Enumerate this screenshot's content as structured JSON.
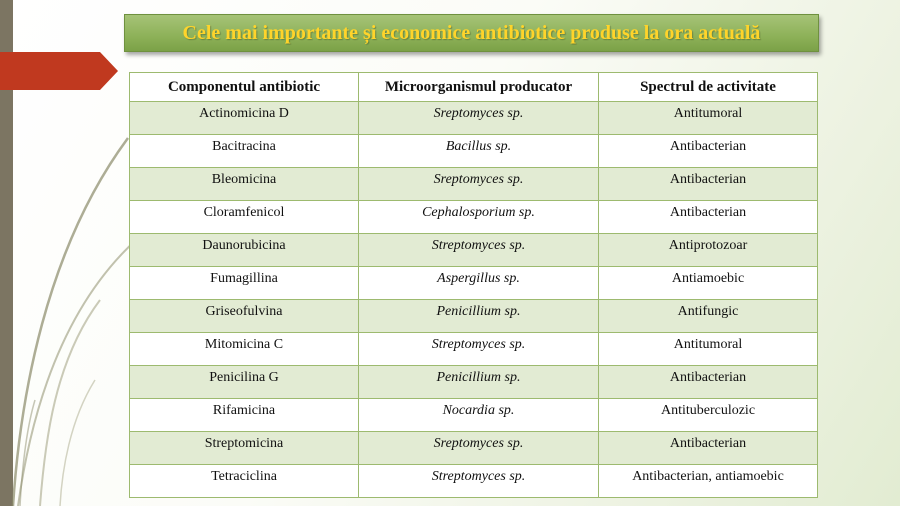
{
  "slide": {
    "title": "Cele mai importante și economice antibiotice produse la ora actuală"
  },
  "colors": {
    "title_bg": "#8db158",
    "title_text": "#ffd42a",
    "row_shade": "#e2ebd3",
    "border": "#9dba6f",
    "arrow": "#c0391f"
  },
  "table": {
    "headers": [
      "Componentul antibiotic",
      "Microorganismul producator",
      "Spectrul de activitate"
    ],
    "rows": [
      [
        "Actinomicina D",
        "Sreptomyces sp.",
        "Antitumoral"
      ],
      [
        "Bacitracina",
        "Bacillus sp.",
        "Antibacterian"
      ],
      [
        "Bleomicina",
        "Sreptomyces sp.",
        "Antibacterian"
      ],
      [
        "Cloramfenicol",
        "Cephalosporium sp.",
        "Antibacterian"
      ],
      [
        "Daunorubicina",
        "Streptomyces sp.",
        "Antiprotozoar"
      ],
      [
        "Fumagillina",
        "Aspergillus sp.",
        "Antiamoebic"
      ],
      [
        "Griseofulvina",
        "Penicillium sp.",
        "Antifungic"
      ],
      [
        "Mitomicina C",
        "Streptomyces sp.",
        "Antitumoral"
      ],
      [
        "Penicilina G",
        "Penicillium sp.",
        "Antibacterian"
      ],
      [
        "Rifamicina",
        "Nocardia sp.",
        "Antituberculozic"
      ],
      [
        "Streptomicina",
        "Sreptomyces sp.",
        "Antibacterian"
      ],
      [
        "Tetraciclina",
        "Streptomyces sp.",
        "Antibacterian, antiamoebic"
      ]
    ]
  }
}
